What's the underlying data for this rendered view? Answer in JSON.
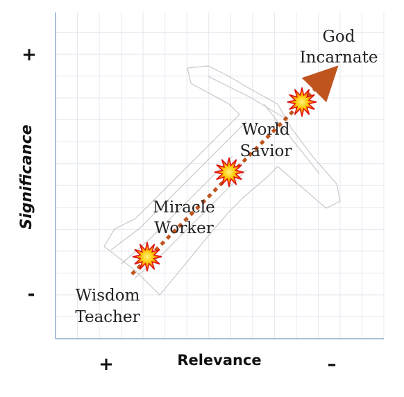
{
  "axes": {
    "y_label": "Significance",
    "y_high": "+",
    "y_low": "-",
    "x_label": "Relevance",
    "x_low": "+",
    "x_high": "–"
  },
  "stages": [
    {
      "lines": [
        "Wisdom",
        "Teacher"
      ]
    },
    {
      "lines": [
        "Miracle",
        "Worker"
      ]
    },
    {
      "lines": [
        "World",
        "Savior"
      ]
    },
    {
      "lines": [
        "God",
        "Incarnate"
      ]
    }
  ]
}
